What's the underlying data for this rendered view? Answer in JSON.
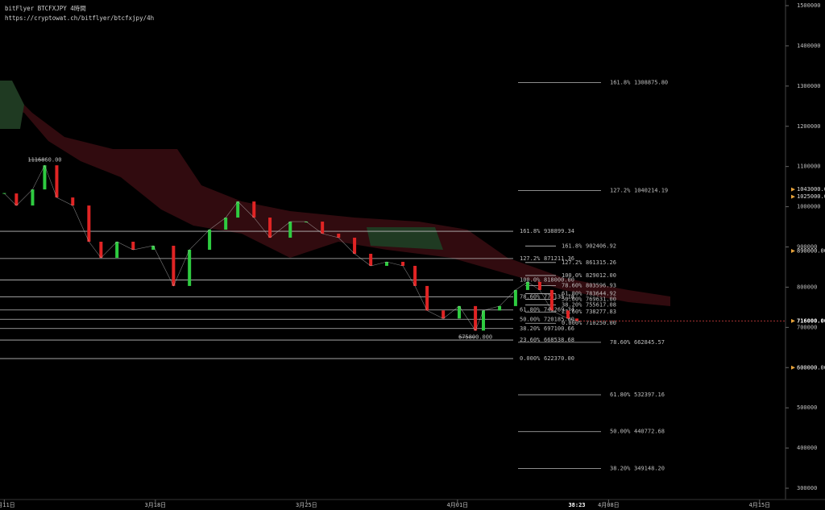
{
  "header": {
    "title": "bitFlyer BTCFXJPY 4時間",
    "url": "https://cryptowat.ch/bitflyer/btcfxjpy/4h"
  },
  "chart_data": {
    "type": "candlestick",
    "x": [
      0,
      0.56,
      1.31,
      1.87,
      2.43,
      3.17,
      3.92,
      4.48,
      5.22,
      5.97,
      6.9,
      7.84,
      8.58,
      9.51,
      10.26,
      10.82,
      11.57,
      12.31,
      13.25,
      13.99,
      14.74,
      15.49,
      16.23,
      16.98,
      17.72,
      18.47,
      19.03,
      19.59,
      20.34,
      21.08,
      21.83,
      22.2,
      22.95,
      23.69,
      24.25,
      24.81,
      25.37,
      26.12,
      26.53
    ],
    "values": [
      1033000,
      1003000,
      1043000,
      1103000,
      1023000,
      1003000,
      913000,
      873000,
      913000,
      893000,
      903000,
      803000,
      893000,
      943000,
      973000,
      1013000,
      973000,
      923000,
      963000,
      963000,
      933000,
      923000,
      883000,
      853000,
      863000,
      853000,
      803000,
      742000,
      722000,
      753000,
      692000,
      742000,
      753000,
      793000,
      813000,
      793000,
      742000,
      722000,
      716000
    ],
    "up_color": "#2ecc40",
    "down_color": "#e02424",
    "xlim": [
      -0.2,
      36.2
    ],
    "ylim": [
      300000,
      1500000
    ],
    "yticks": [
      300000,
      400000,
      500000,
      600000,
      700000,
      800000,
      900000,
      1000000,
      1100000,
      1200000,
      1300000,
      1400000,
      1500000
    ],
    "xticks": [
      {
        "value": 0,
        "label": "3月11日"
      },
      {
        "value": 7,
        "label": "3月18日"
      },
      {
        "value": 14,
        "label": "3月25日"
      },
      {
        "value": 21,
        "label": "4月01日"
      },
      {
        "value": 28,
        "label": "4月08日"
      },
      {
        "value": 35,
        "label": "4月15日"
      }
    ],
    "countdown": "38:23",
    "price_markers": [
      {
        "value": 1043000,
        "label": "1043000.00"
      },
      {
        "value": 1025000,
        "label": "1025000.00"
      },
      {
        "value": 890000,
        "label": "890000.00"
      },
      {
        "value": 716000,
        "label": "716000.00"
      },
      {
        "value": 600000,
        "label": "600000.00"
      }
    ],
    "annotations": [
      {
        "x": 1.87,
        "price": {
          "value": 1116860,
          "label": "1116860.00"
        }
      },
      {
        "x": 21.83,
        "price": {
          "value": 675800,
          "label": "675800.000"
        }
      }
    ],
    "fib_sets": [
      [
        {
          "level": "161.8%",
          "price": {
            "value": 1308875.8,
            "label": "1308875.80"
          }
        },
        {
          "level": "127.2%",
          "price": {
            "value": 1040214.19,
            "label": "1040214.19"
          }
        },
        {
          "level": "78.60%",
          "price": {
            "value": 662845.57,
            "label": "662845.57"
          }
        },
        {
          "level": "61.80%",
          "price": {
            "value": 532397.16,
            "label": "532397.16"
          }
        },
        {
          "level": "50.00%",
          "price": {
            "value": 440772.68,
            "label": "440772.68"
          }
        },
        {
          "level": "38.20%",
          "price": {
            "value": 349148.2,
            "label": "349148.20"
          }
        }
      ],
      [
        {
          "level": "161.8%",
          "price": {
            "value": 938899.34,
            "label": "938899.34"
          }
        },
        {
          "level": "127.2%",
          "price": {
            "value": 871211.36,
            "label": "871211.36"
          }
        },
        {
          "level": "100.0%",
          "price": {
            "value": 818000,
            "label": "818000.00"
          }
        },
        {
          "level": "78.60%",
          "price": {
            "value": 776135.18,
            "label": "776135.18"
          }
        },
        {
          "level": "61.80%",
          "price": {
            "value": 743269.34,
            "label": "743269.34"
          }
        },
        {
          "level": "50.00%",
          "price": {
            "value": 720185,
            "label": "720185.00"
          }
        },
        {
          "level": "38.20%",
          "price": {
            "value": 697100.66,
            "label": "697100.66"
          }
        },
        {
          "level": "23.60%",
          "price": {
            "value": 668538.68,
            "label": "668538.68"
          }
        },
        {
          "level": "0.000%",
          "price": {
            "value": 622370,
            "label": "622370.00"
          }
        }
      ],
      [
        {
          "level": "161.8%",
          "price": {
            "value": 902406.92,
            "label": "902406.92"
          }
        },
        {
          "level": "127.2%",
          "price": {
            "value": 861315.26,
            "label": "861315.26"
          }
        },
        {
          "level": "100.0%",
          "price": {
            "value": 829012,
            "label": "829012.00"
          }
        },
        {
          "level": "78.60%",
          "price": {
            "value": 803596.93,
            "label": "803596.93"
          }
        },
        {
          "level": "61.80%",
          "price": {
            "value": 783644.92,
            "label": "783644.92"
          }
        },
        {
          "level": "50.00%",
          "price": {
            "value": 769631,
            "label": "769631.00"
          }
        },
        {
          "level": "38.20%",
          "price": {
            "value": 755617.08,
            "label": "755617.08"
          }
        },
        {
          "level": "23.60%",
          "price": {
            "value": 738277.83,
            "label": "738277.83"
          }
        },
        {
          "level": "0.000%",
          "price": {
            "value": 710250,
            "label": "710250.00"
          }
        }
      ]
    ]
  }
}
